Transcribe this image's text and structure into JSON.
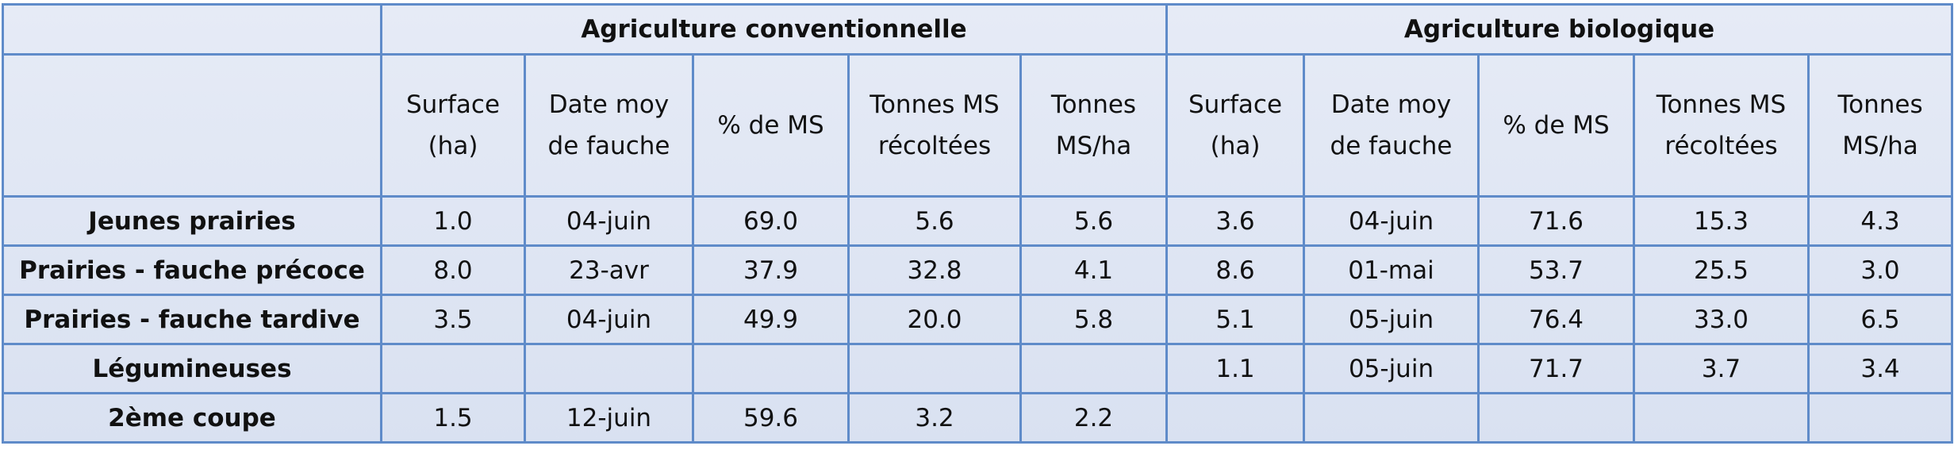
{
  "table": {
    "groups": [
      {
        "title": "Agriculture conventionnelle",
        "columns": [
          [
            "Surface",
            "(ha)"
          ],
          [
            "Date moy",
            "de fauche"
          ],
          [
            "% de MS"
          ],
          [
            "Tonnes MS",
            "récoltées"
          ],
          [
            "Tonnes",
            "MS/ha"
          ]
        ]
      },
      {
        "title": "Agriculture biologique",
        "columns": [
          [
            "Surface",
            "(ha)"
          ],
          [
            "Date moy",
            "de fauche"
          ],
          [
            "% de MS"
          ],
          [
            "Tonnes MS",
            "récoltées"
          ],
          [
            "Tonnes",
            "MS/ha"
          ]
        ]
      }
    ],
    "rows": [
      {
        "label": "Jeunes prairies",
        "values": [
          "1.0",
          "04-juin",
          "69.0",
          "5.6",
          "5.6",
          "3.6",
          "04-juin",
          "71.6",
          "15.3",
          "4.3"
        ]
      },
      {
        "label": "Prairies - fauche précoce",
        "values": [
          "8.0",
          "23-avr",
          "37.9",
          "32.8",
          "4.1",
          "8.6",
          "01-mai",
          "53.7",
          "25.5",
          "3.0"
        ]
      },
      {
        "label": "Prairies - fauche tardive",
        "values": [
          "3.5",
          "04-juin",
          "49.9",
          "20.0",
          "5.8",
          "5.1",
          "05-juin",
          "76.4",
          "33.0",
          "6.5"
        ]
      },
      {
        "label": "Légumineuses",
        "values": [
          null,
          null,
          null,
          null,
          null,
          "1.1",
          "05-juin",
          "71.7",
          "3.7",
          "3.4"
        ]
      },
      {
        "label": "2ème coupe",
        "values": [
          "1.5",
          "12-juin",
          "59.6",
          "3.2",
          "2.2",
          null,
          null,
          null,
          null,
          null
        ]
      }
    ]
  }
}
